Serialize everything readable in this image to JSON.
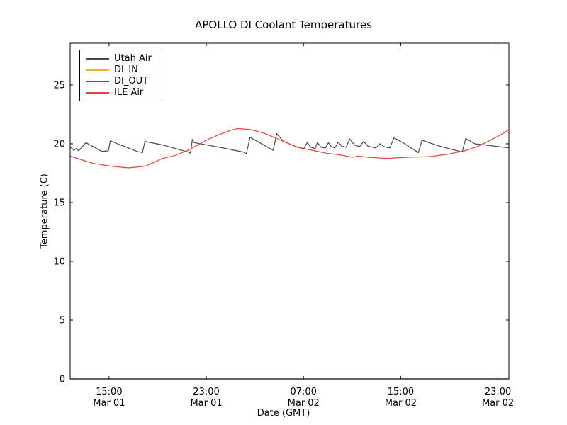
{
  "figure": {
    "background": "#ffffff"
  },
  "chart_data": {
    "type": "line",
    "title": "APOLLO DI Coolant Temperatures",
    "xlabel": "Date (GMT)",
    "ylabel": "Temperature (C)",
    "x_unit": "hours since Mar 01 00:00 GMT",
    "xlim": [
      11.8,
      47.9
    ],
    "ylim": [
      0,
      28.55
    ],
    "grid": false,
    "legend_position": "upper left",
    "axis_color": "#000000",
    "y_ticks": [
      0,
      5,
      10,
      15,
      20,
      25
    ],
    "x_ticks": [
      {
        "value": 15,
        "time": "15:00",
        "date": "Mar 01"
      },
      {
        "value": 23,
        "time": "23:00",
        "date": "Mar 01"
      },
      {
        "value": 31,
        "time": "07:00",
        "date": "Mar 02"
      },
      {
        "value": 39,
        "time": "15:00",
        "date": "Mar 02"
      },
      {
        "value": 47,
        "time": "23:00",
        "date": "Mar 02"
      }
    ],
    "series": [
      {
        "name": "Utah Air",
        "color": "#4a4a4a",
        "points": [
          [
            11.8,
            19.75
          ],
          [
            12.1,
            19.45
          ],
          [
            12.3,
            19.6
          ],
          [
            12.5,
            19.4
          ],
          [
            13.1,
            20.1
          ],
          [
            14.4,
            19.35
          ],
          [
            14.95,
            19.4
          ],
          [
            15.1,
            20.25
          ],
          [
            17.3,
            19.35
          ],
          [
            17.75,
            19.25
          ],
          [
            17.95,
            20.2
          ],
          [
            19.4,
            19.9
          ],
          [
            21.5,
            19.3
          ],
          [
            21.7,
            19.2
          ],
          [
            21.85,
            20.35
          ],
          [
            22.0,
            20.1
          ],
          [
            24.1,
            19.7
          ],
          [
            26.05,
            19.3
          ],
          [
            26.3,
            19.15
          ],
          [
            26.6,
            20.55
          ],
          [
            28.5,
            19.45
          ],
          [
            28.8,
            20.85
          ],
          [
            29.35,
            20.2
          ],
          [
            30.3,
            19.8
          ],
          [
            31.0,
            19.55
          ],
          [
            31.3,
            20.1
          ],
          [
            31.6,
            19.7
          ],
          [
            31.95,
            19.6
          ],
          [
            32.15,
            20.1
          ],
          [
            32.45,
            19.7
          ],
          [
            32.8,
            19.65
          ],
          [
            33.05,
            20.1
          ],
          [
            33.3,
            19.75
          ],
          [
            33.6,
            19.65
          ],
          [
            33.85,
            20.15
          ],
          [
            34.15,
            19.8
          ],
          [
            34.5,
            19.7
          ],
          [
            34.8,
            20.4
          ],
          [
            35.2,
            19.9
          ],
          [
            35.6,
            19.75
          ],
          [
            35.95,
            20.2
          ],
          [
            36.3,
            19.8
          ],
          [
            36.95,
            19.65
          ],
          [
            37.3,
            20.0
          ],
          [
            37.65,
            19.75
          ],
          [
            38.1,
            19.65
          ],
          [
            38.45,
            20.5
          ],
          [
            39.25,
            20.05
          ],
          [
            40.45,
            19.25
          ],
          [
            40.75,
            20.3
          ],
          [
            42.2,
            19.8
          ],
          [
            44.05,
            19.3
          ],
          [
            44.35,
            20.45
          ],
          [
            45.1,
            20.0
          ],
          [
            46.3,
            19.85
          ],
          [
            47.9,
            19.65
          ]
        ]
      },
      {
        "name": "DI_IN",
        "color": "#ffa733",
        "points": [
          [
            11.8,
            0
          ],
          [
            47.9,
            0
          ]
        ]
      },
      {
        "name": "DI_OUT",
        "color": "#8b2fa8",
        "points": [
          [
            11.8,
            0
          ],
          [
            47.9,
            0
          ]
        ]
      },
      {
        "name": "ILE Air",
        "color": "#e8413a",
        "points": [
          [
            11.8,
            18.95
          ],
          [
            13.6,
            18.35
          ],
          [
            15.1,
            18.1
          ],
          [
            16.6,
            17.95
          ],
          [
            18.0,
            18.1
          ],
          [
            19.4,
            18.75
          ],
          [
            20.4,
            19.0
          ],
          [
            21.4,
            19.4
          ],
          [
            23.0,
            20.3
          ],
          [
            24.1,
            20.8
          ],
          [
            25.0,
            21.15
          ],
          [
            25.6,
            21.3
          ],
          [
            26.7,
            21.2
          ],
          [
            27.9,
            20.85
          ],
          [
            29.35,
            20.2
          ],
          [
            30.5,
            19.7
          ],
          [
            31.7,
            19.45
          ],
          [
            32.85,
            19.2
          ],
          [
            34.0,
            19.05
          ],
          [
            35.0,
            18.85
          ],
          [
            35.5,
            18.95
          ],
          [
            36.35,
            18.85
          ],
          [
            37.8,
            18.75
          ],
          [
            39.55,
            18.85
          ],
          [
            41.3,
            18.9
          ],
          [
            42.8,
            19.1
          ],
          [
            44.25,
            19.4
          ],
          [
            45.4,
            19.8
          ],
          [
            46.55,
            20.4
          ],
          [
            47.45,
            20.9
          ],
          [
            47.9,
            21.2
          ]
        ]
      }
    ]
  }
}
